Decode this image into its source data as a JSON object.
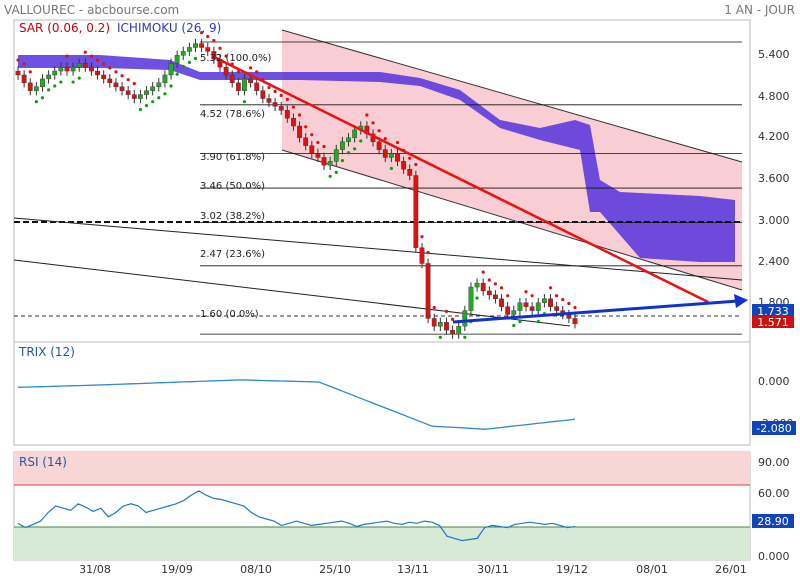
{
  "header": {
    "title": "VALLOUREC - abcbourse.com",
    "period": "1 AN - JOUR"
  },
  "colors": {
    "up": "#22aa22",
    "down": "#dd1111",
    "cloud": "#5533dd",
    "cloud_light": "#f7c6cc",
    "sar_up": "#119911",
    "sar_down": "#dd1111",
    "trix": "#3388cc",
    "rsi": "#2277cc",
    "trend_red": "#ee1111",
    "trend_blue": "#1133cc"
  },
  "legend": {
    "sar": "SAR (0.06, 0.2)",
    "ichimoku": "ICHIMOKU (26, 9)"
  },
  "fib_labels": [
    "5.32 (100.0%)",
    "4.52 (78.6%)",
    "3.90 (61.8%)",
    "3.46 (50.0%)",
    "3.02 (38.2%)",
    "2.47 (23.6%)",
    "1.60 (0.0%)"
  ],
  "price_badges": [
    "1.733",
    "1.571"
  ],
  "trix_badge": "-2.080",
  "rsi_badge": "28.90",
  "panels": {
    "trix_title": "TRIX (12)",
    "rsi_title": "RSI (14)"
  },
  "x_labels": [
    "31/08",
    "19/09",
    "08/10",
    "25/10",
    "13/11",
    "30/11",
    "19/12",
    "08/01",
    "26/01"
  ],
  "chart_data": [
    {
      "type": "candlestick",
      "title": "VALLOUREC",
      "ylim": [
        1.5,
        5.6
      ],
      "y_ticks": [
        "5.400",
        "4.800",
        "4.200",
        "3.600",
        "3.000",
        "2.400",
        "1.800"
      ],
      "fibonacci": [
        {
          "value": 5.32,
          "pct": "100.0%"
        },
        {
          "value": 4.52,
          "pct": "78.6%"
        },
        {
          "value": 3.9,
          "pct": "61.8%"
        },
        {
          "value": 3.46,
          "pct": "50.0%"
        },
        {
          "value": 3.02,
          "pct": "38.2%"
        },
        {
          "value": 2.47,
          "pct": "23.6%"
        },
        {
          "value": 1.6,
          "pct": "0.0%"
        }
      ],
      "close_series": [
        4.9,
        4.8,
        4.7,
        4.75,
        4.85,
        4.9,
        4.95,
        5.0,
        4.95,
        5.0,
        5.05,
        5.0,
        4.95,
        4.9,
        4.85,
        4.8,
        4.75,
        4.7,
        4.65,
        4.6,
        4.65,
        4.7,
        4.75,
        4.8,
        4.9,
        5.05,
        5.15,
        5.2,
        5.25,
        5.3,
        5.25,
        5.2,
        5.1,
        5.0,
        4.9,
        4.8,
        4.7,
        4.85,
        4.8,
        4.7,
        4.6,
        4.55,
        4.5,
        4.45,
        4.35,
        4.25,
        4.1,
        4.0,
        3.9,
        3.85,
        3.75,
        3.8,
        3.95,
        4.05,
        4.1,
        4.2,
        4.25,
        4.15,
        4.05,
        3.95,
        3.85,
        3.9,
        3.8,
        3.7,
        3.62,
        2.7,
        2.5,
        1.8,
        1.7,
        1.75,
        1.65,
        1.6,
        1.7,
        1.9,
        2.2,
        2.25,
        2.15,
        2.1,
        2.05,
        1.95,
        1.85,
        1.9,
        2.0,
        1.95,
        1.9,
        2.0,
        2.05,
        1.95,
        1.9,
        1.85,
        1.8,
        1.733
      ],
      "last_price": 1.733,
      "low_price": 1.571
    },
    {
      "type": "line",
      "title": "TRIX (12)",
      "ylim": [
        -2.4,
        0.5
      ],
      "y_ticks": [
        "0.000",
        "-2.000"
      ],
      "last": -2.08
    },
    {
      "type": "line",
      "title": "RSI (14)",
      "ylim": [
        0,
        100
      ],
      "y_ticks": [
        "90.00",
        "60.00",
        "0.000"
      ],
      "series": [
        34,
        30,
        33,
        36,
        44,
        50,
        48,
        46,
        52,
        49,
        45,
        48,
        40,
        44,
        50,
        52,
        50,
        44,
        46,
        48,
        50,
        52,
        55,
        60,
        64,
        60,
        57,
        56,
        54,
        52,
        50,
        44,
        40,
        38,
        36,
        32,
        34,
        36,
        34,
        32,
        33,
        34,
        35,
        36,
        34,
        31,
        33,
        34,
        35,
        36,
        34,
        33,
        35,
        34,
        36,
        35,
        32,
        22,
        20,
        18,
        19,
        20,
        30,
        32,
        31,
        30,
        33,
        34,
        35,
        34,
        33,
        34,
        32,
        30,
        31
      ],
      "last": 28.9
    }
  ]
}
